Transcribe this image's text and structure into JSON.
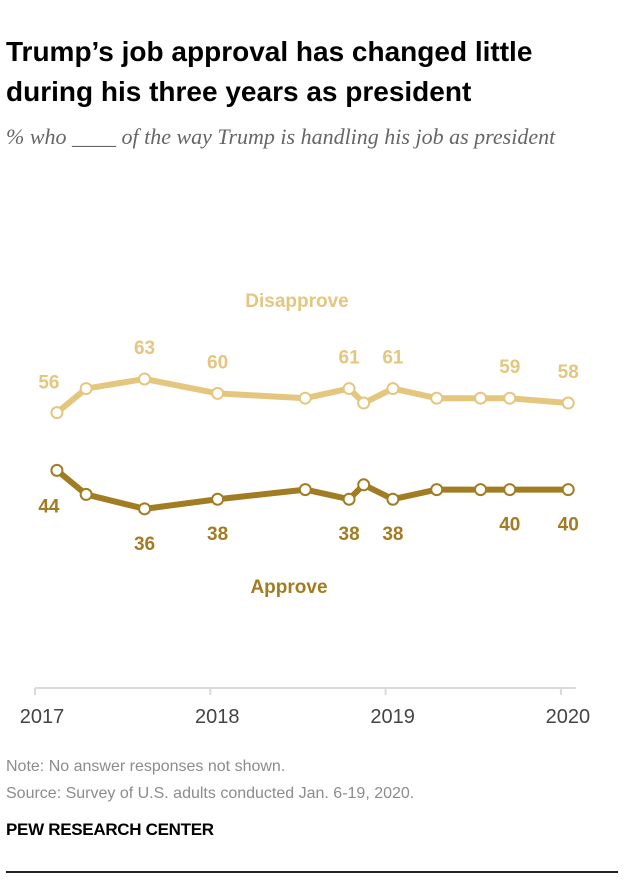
{
  "header": {
    "title": "Trump’s job approval has changed little during his three years as president",
    "subtitle": "% who ____ of the way Trump is handling his job as president"
  },
  "chart_data": {
    "type": "line",
    "title": "Trump’s job approval has changed little during his three years as president",
    "subtitle": "% who ____ of the way Trump is handling his job as president",
    "xlabel": "",
    "ylabel": "",
    "x": [
      "2017-02",
      "2017-04",
      "2017-08",
      "2018-01",
      "2018-07",
      "2018-10",
      "2018-11",
      "2019-01",
      "2019-04",
      "2019-07",
      "2019-09",
      "2020-01"
    ],
    "x_ticks": [
      "2017",
      "2018",
      "2019",
      "2020"
    ],
    "xlim": [
      "2017",
      "2020"
    ],
    "ylim": [
      0,
      100
    ],
    "grid": false,
    "series": [
      {
        "name": "Disapprove",
        "color": "#E4C67F",
        "values": [
          56,
          61,
          63,
          60,
          59,
          61,
          58,
          61,
          59,
          59,
          59,
          58
        ],
        "labeled_points": [
          0,
          2,
          3,
          5,
          7,
          10,
          11
        ]
      },
      {
        "name": "Approve",
        "color": "#A27C22",
        "values": [
          44,
          39,
          36,
          38,
          40,
          38,
          41,
          38,
          40,
          40,
          40,
          40
        ],
        "labeled_points": [
          0,
          2,
          3,
          5,
          7,
          10,
          11
        ]
      }
    ]
  },
  "footer": {
    "note": "Note: No answer responses not shown.",
    "source": "Source: Survey of U.S. adults conducted Jan. 6-19, 2020.",
    "brand": "PEW RESEARCH CENTER"
  }
}
